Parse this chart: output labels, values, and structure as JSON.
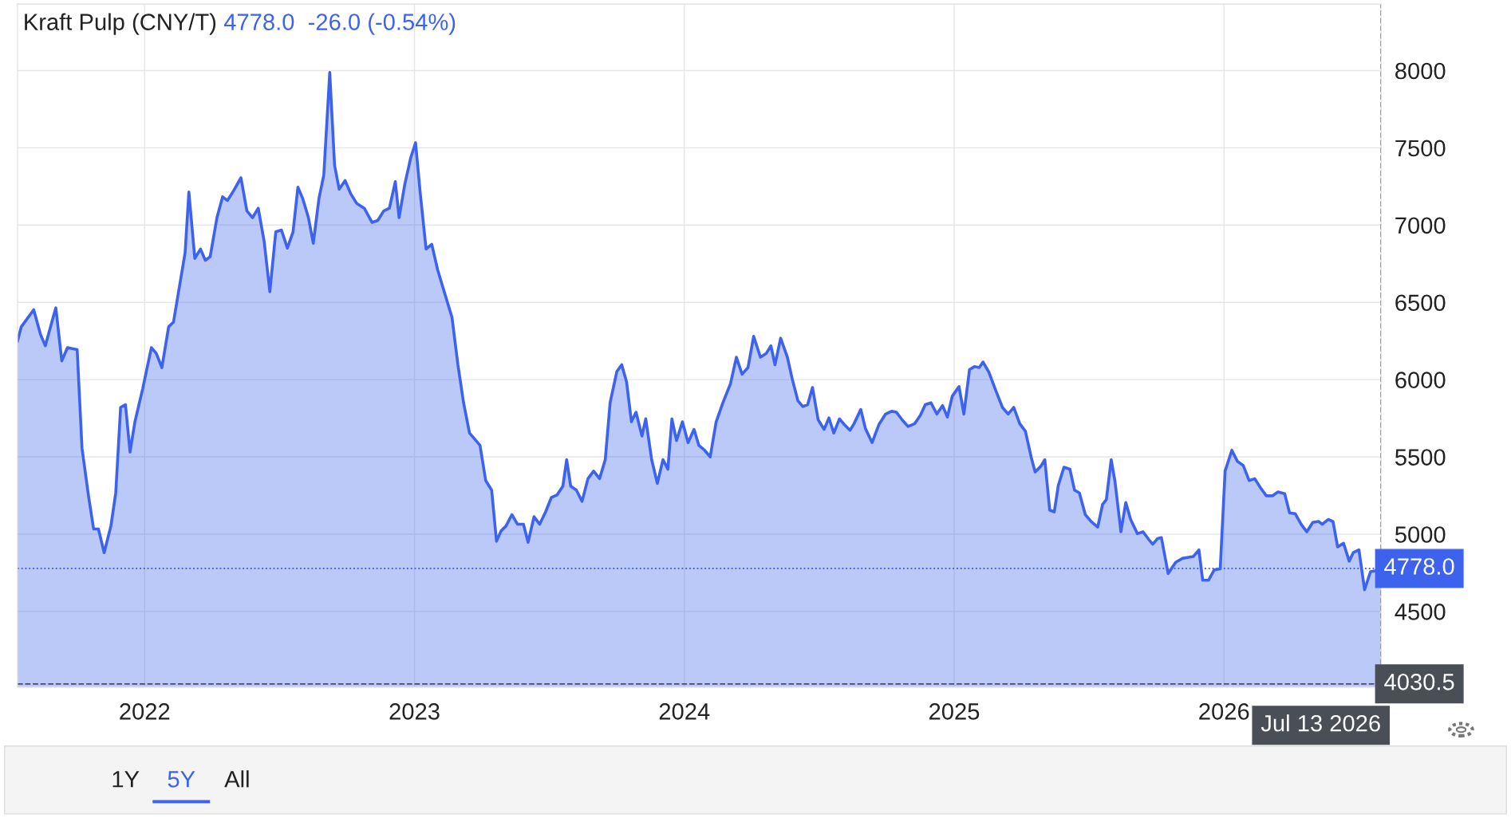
{
  "chart_data": {
    "type": "area",
    "title": "Kraft Pulp (CNY/T)",
    "subtitle": "4778.0  -26.0 (-0.54%)",
    "x": [
      2021.529,
      2021.543,
      2021.589,
      2021.614,
      2021.632,
      2021.661,
      2021.671,
      2021.693,
      2021.714,
      2021.75,
      2021.768,
      2021.793,
      2021.811,
      2021.829,
      2021.85,
      2021.875,
      2021.893,
      2021.911,
      2021.929,
      2021.946,
      2021.964,
      2021.993,
      2022.025,
      2022.043,
      2022.064,
      2022.089,
      2022.107,
      2022.15,
      2022.164,
      2022.186,
      2022.207,
      2022.225,
      2022.243,
      2022.268,
      2022.289,
      2022.307,
      2022.329,
      2022.357,
      2022.379,
      2022.4,
      2022.421,
      2022.443,
      2022.464,
      2022.486,
      2022.507,
      2022.529,
      2022.55,
      2022.568,
      2022.586,
      2022.607,
      2022.625,
      2022.646,
      2022.664,
      2022.686,
      2022.704,
      2022.721,
      2022.743,
      2022.764,
      2022.786,
      2022.814,
      2022.843,
      2022.864,
      2022.886,
      2022.907,
      2022.929,
      2022.943,
      2022.964,
      2022.986,
      2023.004,
      2023.021,
      2023.043,
      2023.064,
      2023.086,
      2023.107,
      2023.139,
      2023.161,
      2023.182,
      2023.204,
      2023.243,
      2023.264,
      2023.286,
      2023.304,
      2023.321,
      2023.339,
      2023.361,
      2023.382,
      2023.404,
      2023.421,
      2023.443,
      2023.464,
      2023.486,
      2023.507,
      2023.529,
      2023.55,
      2023.564,
      2023.579,
      2023.6,
      2023.621,
      2023.643,
      2023.664,
      2023.686,
      2023.707,
      2023.725,
      2023.75,
      2023.768,
      2023.786,
      2023.804,
      2023.821,
      2023.843,
      2023.857,
      2023.879,
      2023.9,
      2023.921,
      2023.939,
      2023.954,
      2023.971,
      2023.993,
      2024.014,
      2024.036,
      2024.054,
      2024.075,
      2024.096,
      2024.118,
      2024.143,
      2024.171,
      2024.193,
      2024.214,
      2024.236,
      2024.257,
      2024.282,
      2024.304,
      2024.321,
      2024.336,
      2024.357,
      2024.382,
      2024.4,
      2024.421,
      2024.439,
      2024.457,
      2024.475,
      2024.496,
      2024.518,
      2024.536,
      2024.554,
      2024.575,
      2024.593,
      2024.614,
      2024.629,
      2024.654,
      2024.671,
      2024.696,
      2024.721,
      2024.746,
      2024.768,
      2024.786,
      2024.807,
      2024.829,
      2024.854,
      2024.875,
      2024.893,
      2024.914,
      2024.936,
      2024.957,
      2024.975,
      2024.993,
      2025.018,
      2025.036,
      2025.057,
      2025.075,
      2025.093,
      2025.107,
      2025.129,
      2025.154,
      2025.179,
      2025.2,
      2025.221,
      2025.243,
      2025.264,
      2025.286,
      2025.3,
      2025.321,
      2025.336,
      2025.354,
      2025.371,
      2025.386,
      2025.407,
      2025.429,
      2025.446,
      2025.464,
      2025.486,
      2025.507,
      2025.532,
      2025.55,
      2025.564,
      2025.582,
      2025.596,
      2025.618,
      2025.636,
      2025.654,
      2025.679,
      2025.7,
      2025.721,
      2025.736,
      2025.754,
      2025.768,
      2025.793,
      2025.821,
      2025.846,
      2025.864,
      2025.886,
      2025.907,
      2025.921,
      2025.943,
      2025.964,
      2025.986,
      2026.004,
      2026.029,
      2026.05,
      2026.071,
      2026.093,
      2026.114,
      2026.136,
      2026.157,
      2026.179,
      2026.2,
      2026.225,
      2026.243,
      2026.264,
      2026.286,
      2026.307,
      2026.329,
      2026.35,
      2026.364,
      2026.386,
      2026.404,
      2026.421,
      2026.443,
      2026.464,
      2026.479,
      2026.5,
      2026.521,
      2026.543,
      2026.564,
      2026.582
    ],
    "series": [
      {
        "color": "#3d63ee",
        "values": [
          6250,
          6342,
          6452,
          6293,
          6219,
          6403,
          6464,
          6121,
          6207,
          6194,
          5555,
          5236,
          5033,
          5033,
          4880,
          5052,
          5267,
          5820,
          5838,
          5531,
          5727,
          5942,
          6207,
          6170,
          6078,
          6342,
          6372,
          6821,
          7214,
          6784,
          6845,
          6772,
          6796,
          7048,
          7183,
          7159,
          7220,
          7306,
          7091,
          7048,
          7109,
          6894,
          6569,
          6956,
          6968,
          6851,
          6956,
          7245,
          7171,
          7048,
          6882,
          7171,
          7324,
          7988,
          7386,
          7232,
          7288,
          7202,
          7140,
          7109,
          7017,
          7030,
          7091,
          7109,
          7281,
          7048,
          7263,
          7435,
          7533,
          7214,
          6845,
          6876,
          6710,
          6587,
          6403,
          6096,
          5850,
          5654,
          5574,
          5347,
          5285,
          4954,
          5021,
          5052,
          5126,
          5064,
          5064,
          4947,
          5113,
          5064,
          5144,
          5236,
          5255,
          5310,
          5482,
          5310,
          5285,
          5212,
          5359,
          5408,
          5359,
          5482,
          5850,
          6053,
          6096,
          5985,
          5727,
          5789,
          5635,
          5746,
          5482,
          5328,
          5482,
          5420,
          5746,
          5605,
          5727,
          5592,
          5678,
          5574,
          5543,
          5500,
          5727,
          5850,
          5973,
          6145,
          6035,
          6078,
          6280,
          6145,
          6170,
          6219,
          6096,
          6268,
          6145,
          6004,
          5863,
          5826,
          5838,
          5949,
          5740,
          5678,
          5752,
          5654,
          5746,
          5709,
          5672,
          5715,
          5807,
          5684,
          5592,
          5709,
          5777,
          5795,
          5789,
          5740,
          5697,
          5715,
          5770,
          5838,
          5850,
          5777,
          5832,
          5758,
          5893,
          5955,
          5777,
          6065,
          6084,
          6078,
          6114,
          6047,
          5930,
          5820,
          5777,
          5820,
          5715,
          5666,
          5494,
          5402,
          5439,
          5482,
          5156,
          5144,
          5316,
          5433,
          5420,
          5285,
          5267,
          5126,
          5083,
          5046,
          5193,
          5224,
          5482,
          5341,
          5015,
          5205,
          5095,
          5003,
          5015,
          4966,
          4935,
          4972,
          4978,
          4745,
          4818,
          4843,
          4849,
          4855,
          4898,
          4702,
          4702,
          4769,
          4775,
          5408,
          5543,
          5470,
          5445,
          5347,
          5359,
          5298,
          5248,
          5248,
          5273,
          5261,
          5138,
          5132,
          5064,
          5015,
          5076,
          5082,
          5064,
          5095,
          5082,
          4917,
          4941,
          4825,
          4880,
          4898,
          4640,
          4757,
          4763,
          4778
        ]
      }
    ],
    "xlim": [
      2021.529,
      2026.582
    ],
    "xticks": [
      2022,
      2023,
      2024,
      2025,
      2026
    ],
    "ylim": [
      4010,
      8430
    ],
    "yticks": [
      4500,
      5000,
      5500,
      6000,
      6500,
      7000,
      7500,
      8000
    ],
    "grid": true,
    "ref_lines": [
      {
        "axis": "y",
        "value": 4778,
        "label": "4778.0",
        "color": "#3d63ee",
        "line_style": "dotted"
      },
      {
        "axis": "y",
        "value": 4030.5,
        "label": "4030.5",
        "color": "#4a4f57",
        "line_style": "dashed"
      },
      {
        "axis": "x",
        "value": 2026.582,
        "label": "Jul 13 2026",
        "color": "#4a4f57",
        "line_style": "dashed"
      }
    ],
    "annotations": [
      "1Y",
      "5Y",
      "All"
    ]
  }
}
